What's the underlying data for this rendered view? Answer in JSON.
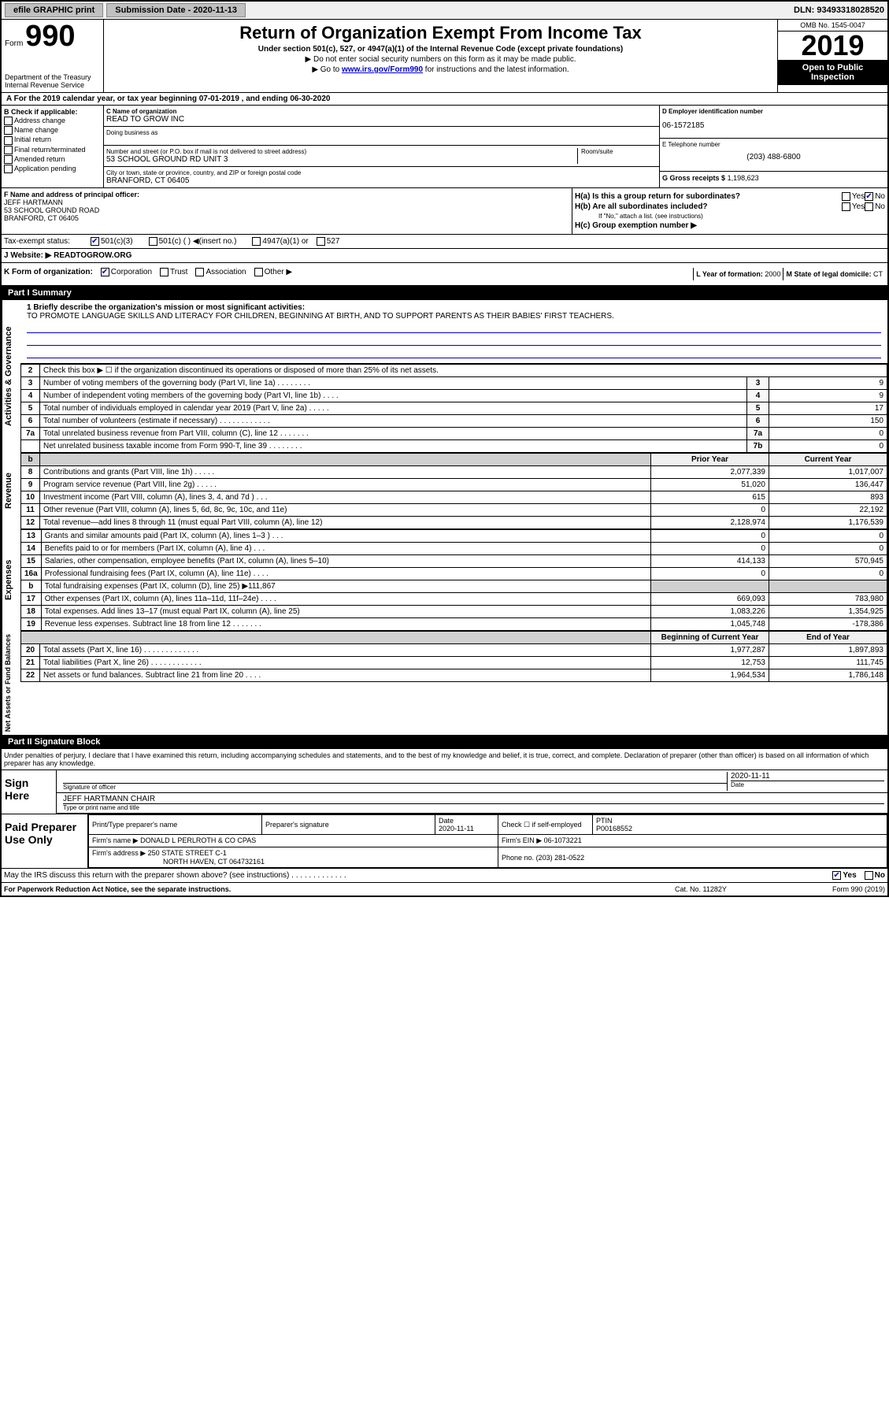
{
  "top": {
    "efile": "efile GRAPHIC print",
    "sub_lbl": "Submission Date - 2020-11-13",
    "dln": "DLN: 93493318028520"
  },
  "hdr": {
    "form_word": "Form",
    "form_num": "990",
    "dept1": "Department of the Treasury",
    "dept2": "Internal Revenue Service",
    "title": "Return of Organization Exempt From Income Tax",
    "sub": "Under section 501(c), 527, or 4947(a)(1) of the Internal Revenue Code (except private foundations)",
    "note1": "▶ Do not enter social security numbers on this form as it may be made public.",
    "note2_pre": "▶ Go to ",
    "note2_link": "www.irs.gov/Form990",
    "note2_post": " for instructions and the latest information.",
    "omb": "OMB No. 1545-0047",
    "year": "2019",
    "open": "Open to Public Inspection"
  },
  "period": "A For the 2019 calendar year, or tax year beginning 07-01-2019    , and ending 06-30-2020",
  "b": {
    "lbl": "B Check if applicable:",
    "opts": [
      "Address change",
      "Name change",
      "Initial return",
      "Final return/terminated",
      "Amended return",
      "Application pending"
    ]
  },
  "c": {
    "name_lbl": "C Name of organization",
    "name": "READ TO GROW INC",
    "dba_lbl": "Doing business as",
    "addr_lbl": "Number and street (or P.O. box if mail is not delivered to street address)",
    "room_lbl": "Room/suite",
    "addr": "53 SCHOOL GROUND RD UNIT 3",
    "city_lbl": "City or town, state or province, country, and ZIP or foreign postal code",
    "city": "BRANFORD, CT  06405"
  },
  "d": {
    "lbl": "D Employer identification number",
    "val": "06-1572185"
  },
  "e": {
    "lbl": "E Telephone number",
    "val": "(203) 488-6800"
  },
  "g": {
    "lbl": "G Gross receipts $",
    "val": "1,198,623"
  },
  "f": {
    "lbl": "F  Name and address of principal officer:",
    "name": "JEFF HARTMANN",
    "addr1": "53 SCHOOL GROUND ROAD",
    "addr2": "BRANFORD, CT  06405"
  },
  "h": {
    "a": "H(a)  Is this a group return for subordinates?",
    "b": "H(b)  Are all subordinates included?",
    "b_note": "If \"No,\" attach a list. (see instructions)",
    "c": "H(c)  Group exemption number ▶"
  },
  "status": {
    "lbl": "Tax-exempt status:",
    "o1": "501(c)(3)",
    "o2": "501(c) (   ) ◀(insert no.)",
    "o3": "4947(a)(1) or",
    "o4": "527"
  },
  "j": {
    "lbl": "J    Website: ▶",
    "val": "READTOGROW.ORG"
  },
  "k": {
    "lbl": "K Form of organization:",
    "o": [
      "Corporation",
      "Trust",
      "Association",
      "Other ▶"
    ]
  },
  "l": {
    "lbl": "L Year of formation:",
    "val": "2000"
  },
  "m": {
    "lbl": "M State of legal domicile:",
    "val": "CT"
  },
  "p1": {
    "title": "Part I      Summary",
    "line1_lbl": "1  Briefly describe the organization's mission or most significant activities:",
    "mission": "TO PROMOTE LANGUAGE SKILLS AND LITERACY FOR CHILDREN, BEGINNING AT BIRTH, AND TO SUPPORT PARENTS AS THEIR BABIES' FIRST TEACHERS.",
    "line2": "Check this box ▶ ☐  if the organization discontinued its operations or disposed of more than 25% of its net assets.",
    "rows1": [
      {
        "n": "3",
        "d": "Number of voting members of the governing body (Part VI, line 1a)   .    .    .    .    .    .    .    .",
        "b": "3",
        "v": "9"
      },
      {
        "n": "4",
        "d": "Number of independent voting members of the governing body (Part VI, line 1b)   .    .    .    .",
        "b": "4",
        "v": "9"
      },
      {
        "n": "5",
        "d": "Total number of individuals employed in calendar year 2019 (Part V, line 2a)   .    .    .    .    .",
        "b": "5",
        "v": "17"
      },
      {
        "n": "6",
        "d": "Total number of volunteers (estimate if necessary)    .    .    .    .    .    .    .    .    .    .    .    .",
        "b": "6",
        "v": "150"
      },
      {
        "n": "7a",
        "d": "Total unrelated business revenue from Part VIII, column (C), line 12   .    .    .    .    .    .    .",
        "b": "7a",
        "v": "0"
      },
      {
        "n": "",
        "d": "Net unrelated business taxable income from Form 990-T, line 39   .    .    .    .    .    .    .    .",
        "b": "7b",
        "v": "0"
      }
    ],
    "col_hdr": [
      "Prior Year",
      "Current Year"
    ],
    "rev_lbl": "Revenue",
    "rev": [
      {
        "n": "8",
        "d": "Contributions and grants (Part VIII, line 1h)    .    .    .    .    .",
        "p": "2,077,339",
        "c": "1,017,007"
      },
      {
        "n": "9",
        "d": "Program service revenue (Part VIII, line 2g)    .    .    .    .    .",
        "p": "51,020",
        "c": "136,447"
      },
      {
        "n": "10",
        "d": "Investment income (Part VIII, column (A), lines 3, 4, and 7d )    .    .    .",
        "p": "615",
        "c": "893"
      },
      {
        "n": "11",
        "d": "Other revenue (Part VIII, column (A), lines 5, 6d, 8c, 9c, 10c, and 11e)",
        "p": "0",
        "c": "22,192"
      },
      {
        "n": "12",
        "d": "Total revenue—add lines 8 through 11 (must equal Part VIII, column (A), line 12)",
        "p": "2,128,974",
        "c": "1,176,539"
      }
    ],
    "exp_lbl": "Expenses",
    "exp": [
      {
        "n": "13",
        "d": "Grants and similar amounts paid (Part IX, column (A), lines 1–3 )   .    .    .",
        "p": "0",
        "c": "0"
      },
      {
        "n": "14",
        "d": "Benefits paid to or for members (Part IX, column (A), line 4)   .    .    .",
        "p": "0",
        "c": "0"
      },
      {
        "n": "15",
        "d": "Salaries, other compensation, employee benefits (Part IX, column (A), lines 5–10)",
        "p": "414,133",
        "c": "570,945"
      },
      {
        "n": "16a",
        "d": "Professional fundraising fees (Part IX, column (A), line 11e)   .    .    .    .",
        "p": "0",
        "c": "0"
      },
      {
        "n": "b",
        "d": "Total fundraising expenses (Part IX, column (D), line 25) ▶111,867",
        "p": "",
        "c": "",
        "shade": true
      },
      {
        "n": "17",
        "d": "Other expenses (Part IX, column (A), lines 11a–11d, 11f–24e)   .    .    .    .",
        "p": "669,093",
        "c": "783,980"
      },
      {
        "n": "18",
        "d": "Total expenses. Add lines 13–17 (must equal Part IX, column (A), line 25)",
        "p": "1,083,226",
        "c": "1,354,925"
      },
      {
        "n": "19",
        "d": "Revenue less expenses. Subtract line 18 from line 12   .    .    .    .    .    .    .",
        "p": "1,045,748",
        "c": "-178,386"
      }
    ],
    "na_lbl": "Net Assets or Fund Balances",
    "na_hdr": [
      "Beginning of Current Year",
      "End of Year"
    ],
    "na": [
      {
        "n": "20",
        "d": "Total assets (Part X, line 16)   .    .    .    .    .    .    .    .    .    .    .    .    .",
        "p": "1,977,287",
        "c": "1,897,893"
      },
      {
        "n": "21",
        "d": "Total liabilities (Part X, line 26)   .    .    .    .    .    .    .    .    .    .    .    .",
        "p": "12,753",
        "c": "111,745"
      },
      {
        "n": "22",
        "d": "Net assets or fund balances. Subtract line 21 from line 20   .    .    .    .",
        "p": "1,964,534",
        "c": "1,786,148"
      }
    ],
    "act_lbl": "Activities & Governance"
  },
  "p2": {
    "title": "Part II     Signature Block",
    "intro": "Under penalties of perjury, I declare that I have examined this return, including accompanying schedules and statements, and to the best of my knowledge and belief, it is true, correct, and complete. Declaration of preparer (other than officer) is based on all information of which preparer has any knowledge.",
    "sign_here": "Sign Here",
    "sig_officer": "Signature of officer",
    "date": "2020-11-11",
    "date_lbl": "Date",
    "officer_name": "JEFF HARTMANN  CHAIR",
    "type_name": "Type or print name and title",
    "paid": "Paid Preparer Use Only",
    "prep_name_lbl": "Print/Type preparer's name",
    "prep_sig_lbl": "Preparer's signature",
    "prep_date": "2020-11-11",
    "self_emp": "Check ☐  if self-employed",
    "ptin_lbl": "PTIN",
    "ptin": "P00168552",
    "firm_name_lbl": "Firm's name     ▶",
    "firm_name": "DONALD L PERLROTH & CO CPAS",
    "firm_ein_lbl": "Firm's EIN ▶",
    "firm_ein": "06-1073221",
    "firm_addr_lbl": "Firm's address ▶",
    "firm_addr1": "250 STATE STREET C-1",
    "firm_addr2": "NORTH HAVEN, CT  064732161",
    "phone_lbl": "Phone no.",
    "phone": "(203) 281-0522",
    "discuss": "May the IRS discuss this return with the preparer shown above? (see instructions)    .    .    .    .    .    .    .    .    .    .    .    .    .",
    "yes": "Yes",
    "no": "No"
  },
  "foot": {
    "l": "For Paperwork Reduction Act Notice, see the separate instructions.",
    "c": "Cat. No. 11282Y",
    "r": "Form 990 (2019)"
  },
  "colors": {
    "link": "#0000cc"
  }
}
